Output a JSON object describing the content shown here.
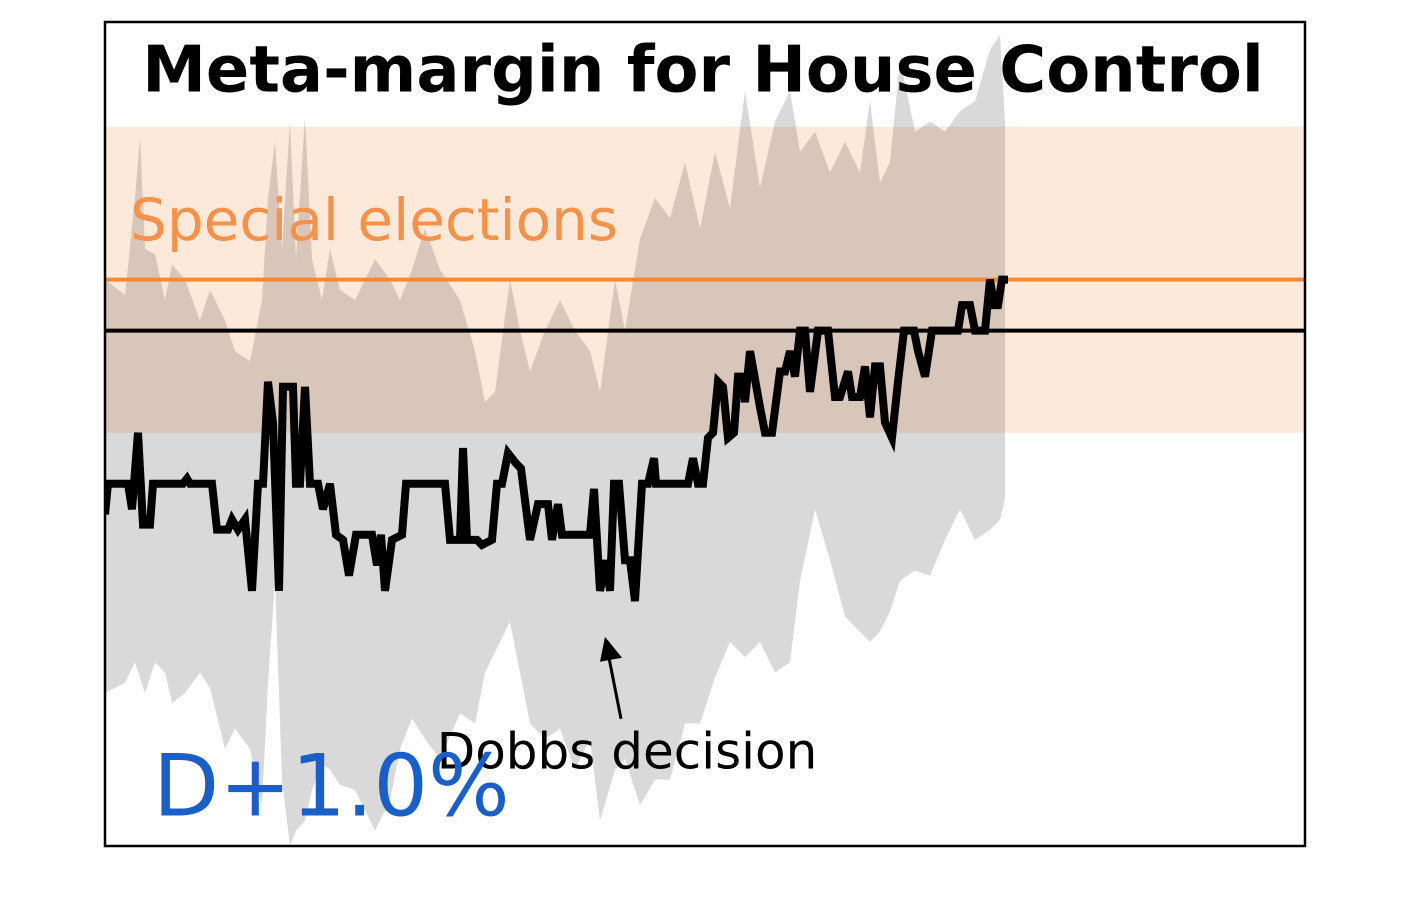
{
  "chart_data": {
    "type": "line",
    "title": "Meta-margin for House Control",
    "xlim": [
      0,
      240
    ],
    "ylim": [
      -10.1,
      6.05
    ],
    "color": "#000000",
    "x": [
      0,
      0.6,
      4.6,
      5.4,
      6.6,
      7.6,
      9,
      9.6,
      15.6,
      16.4,
      17,
      21.4,
      22.4,
      24.6,
      25.4,
      26.6,
      28,
      29.4,
      30.6,
      31.6,
      32.6,
      33.6,
      34.8,
      35.6,
      37.6,
      38.2,
      39,
      40,
      41,
      42.6,
      43.6,
      45,
      46.2,
      47.6,
      48.8,
      50.2,
      53.4,
      54.4,
      55.2,
      56,
      57.4,
      59.4,
      60.2,
      68,
      69,
      71,
      71.6,
      72.4,
      74.4,
      75.4,
      77.4,
      78.4,
      79.4,
      80.6,
      82.2,
      83.2,
      85,
      86.6,
      88.6,
      89.4,
      90.6,
      91.4,
      97,
      97.8,
      99,
      100.2,
      101,
      101.8,
      102.8,
      104,
      105,
      106,
      107.4,
      108.6,
      109.8,
      110.2,
      116.6,
      117.6,
      118.6,
      119.6,
      120.6,
      121.6,
      122.6,
      123.6,
      124.6,
      125.8,
      126.6,
      127.4,
      128,
      129,
      131,
      132,
      133.4,
      135,
      136,
      137,
      138,
      139,
      140,
      141,
      142.6,
      144.6,
      146,
      147,
      148.6,
      149.4,
      151,
      152,
      153,
      154,
      155,
      156,
      157.4,
      158.6,
      159.8,
      161.8,
      162.6,
      164,
      165.4,
      170.6,
      171.4,
      173,
      174,
      176,
      177,
      177.8,
      178.6,
      179.4,
      180.6
    ],
    "values": [
      -3.6,
      -3.0,
      -3.0,
      -3.5,
      -2.0,
      -3.8,
      -3.8,
      -3.0,
      -3.0,
      -2.9,
      -3.0,
      -3.0,
      -3.9,
      -3.9,
      -3.7,
      -3.9,
      -3.7,
      -5.1,
      -3.0,
      -3.0,
      -1.0,
      -1.8,
      -5.1,
      -1.1,
      -1.1,
      -3.0,
      -3.0,
      -1.1,
      -3.0,
      -3.0,
      -3.5,
      -3.0,
      -4.0,
      -4.1,
      -4.8,
      -4.0,
      -4.0,
      -4.6,
      -4.0,
      -5.1,
      -4.1,
      -4.0,
      -3.0,
      -3.0,
      -4.1,
      -4.1,
      -2.3,
      -4.1,
      -4.1,
      -4.2,
      -4.1,
      -3.0,
      -3.0,
      -2.4,
      -2.6,
      -2.7,
      -4.1,
      -3.4,
      -3.4,
      -4.1,
      -3.4,
      -4.0,
      -4.0,
      -3.1,
      -5.1,
      -4.5,
      -5.1,
      -3.0,
      -3.0,
      -4.5,
      -4.5,
      -5.3,
      -3.0,
      -3.0,
      -2.5,
      -3.0,
      -3.0,
      -2.5,
      -3.0,
      -3.0,
      -2.1,
      -2.0,
      -1.0,
      -1.1,
      -2.1,
      -2.0,
      -0.9,
      -0.9,
      -1.4,
      -0.4,
      -1.5,
      -2.0,
      -2.0,
      -0.8,
      -0.8,
      -0.4,
      -0.9,
      0,
      0,
      -1.2,
      0,
      0,
      -1.3,
      -1.3,
      -0.8,
      -1.3,
      -1.3,
      -0.7,
      -1.7,
      -0.7,
      -0.7,
      -1.8,
      -2.1,
      -1.0,
      0,
      0,
      -0.4,
      -0.9,
      0,
      0,
      0.5,
      0.5,
      0,
      0,
      1.0,
      0.5,
      0.5,
      1.0,
      1.0
    ],
    "band_color": "#d9d9d9",
    "band_x": [
      0,
      4,
      6,
      7,
      8,
      10,
      12,
      13.4,
      16,
      19,
      21,
      24,
      26,
      29,
      31.4,
      32.6,
      34,
      35.4,
      37,
      38.2,
      40,
      41.4,
      43.4,
      45,
      47,
      50,
      54,
      57,
      59,
      61.4,
      64,
      67,
      71,
      74,
      76,
      78,
      81,
      83,
      85,
      88,
      91,
      94,
      97,
      99,
      102,
      104,
      107,
      110,
      113,
      116,
      119,
      122,
      125,
      128,
      131,
      134,
      137,
      139,
      142,
      145,
      148,
      151,
      153,
      155,
      157,
      159,
      162,
      165,
      168,
      171,
      174,
      177,
      179,
      180
    ],
    "band_upper": [
      1.0,
      0.7,
      2.6,
      3.8,
      1.6,
      1.5,
      0.6,
      1.3,
      1.0,
      0.2,
      0.8,
      0.2,
      -0.4,
      -0.6,
      0.6,
      2.6,
      3.7,
      1.6,
      4.1,
      1.4,
      4.2,
      1.4,
      0.6,
      1.6,
      0.8,
      0.6,
      1.4,
      1.0,
      0.6,
      1.2,
      2.0,
      1.2,
      0.6,
      -0.4,
      -1.4,
      -1.2,
      1.0,
      0,
      -0.8,
      0,
      0.6,
      0,
      -0.4,
      -1.2,
      1.0,
      0,
      1.8,
      2.6,
      2.2,
      3.3,
      2.0,
      3.5,
      2.4,
      4.7,
      2.8,
      4.1,
      4.7,
      3.5,
      3.9,
      3.1,
      3.7,
      3.1,
      4.5,
      2.9,
      3.3,
      5.3,
      3.9,
      4.1,
      3.9,
      4.3,
      4.5,
      5.5,
      5.8,
      4.1
    ],
    "band_lower": [
      -7.1,
      -6.9,
      -6.5,
      -6.8,
      -7.1,
      -6.5,
      -6.7,
      -7.3,
      -7.1,
      -6.7,
      -7.0,
      -8.2,
      -7.8,
      -8.2,
      -9.3,
      -6.9,
      -4.9,
      -8.8,
      -10.1,
      -9.8,
      -9.6,
      -9.0,
      -8.5,
      -8.6,
      -8.9,
      -9.0,
      -9.8,
      -9.2,
      -8.2,
      -7.6,
      -8.0,
      -8.4,
      -7.5,
      -7.7,
      -6.7,
      -6.3,
      -5.7,
      -6.7,
      -7.7,
      -8.0,
      -7.8,
      -8.6,
      -8.0,
      -9.6,
      -8.6,
      -8.4,
      -9.3,
      -8.8,
      -8.8,
      -7.7,
      -7.7,
      -6.8,
      -6.1,
      -6.4,
      -6.1,
      -6.7,
      -6.5,
      -4.9,
      -3.5,
      -4.5,
      -5.6,
      -5.9,
      -6.1,
      -5.9,
      -5.5,
      -4.9,
      -4.7,
      -4.8,
      -4.1,
      -3.5,
      -4.1,
      -3.9,
      -3.7,
      -3.3
    ],
    "shaded_region": {
      "label": "Special elections",
      "ylim": [
        -2.0,
        4.0
      ],
      "color": "#fde9da",
      "label_color": "#f5924a"
    },
    "reference_lines": [
      {
        "value": 0,
        "color": "#000000"
      },
      {
        "value": 1.0,
        "color": "#f08a3a"
      }
    ],
    "annotation": {
      "text": "Dobbs decision",
      "x": 100,
      "y": -6.0
    },
    "current_label": "D+1.0%",
    "current_label_color": "#1a5fc8"
  }
}
